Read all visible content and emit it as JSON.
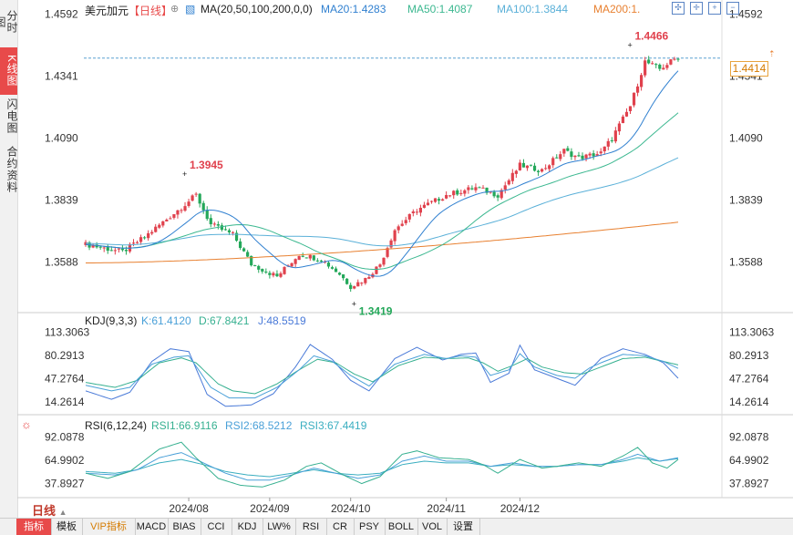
{
  "sidebar": {
    "items": [
      {
        "label": "分时图",
        "active": false
      },
      {
        "label": "K线图",
        "active": true
      },
      {
        "label": "闪电图",
        "active": false
      },
      {
        "label": "合约资料",
        "active": false
      }
    ]
  },
  "header": {
    "symbol": "美元加元",
    "period_tag": "【日线】",
    "ma_label": "MA(20,50,100,200,0,0)",
    "ma20": "MA20:1.4283",
    "ma50": "MA50:1.4087",
    "ma100": "MA100:1.3844",
    "ma200": "MA200:1."
  },
  "kdj_header": {
    "label": "KDJ(9,3,3)",
    "k": "K:61.4120",
    "d": "D:67.8421",
    "j": "J:48.5519"
  },
  "rsi_header": {
    "label": "RSI(6,12,24)",
    "rsi1": "RSI1:66.9116",
    "rsi2": "RSI2:68.5212",
    "rsi3": "RSI3:67.4419"
  },
  "current_price": "1.4414",
  "period_button": "日线",
  "bottom_tabs": [
    "指标",
    "模板",
    "VIP指标",
    "MACD",
    "BIAS",
    "CCI",
    "KDJ",
    "LW%",
    "RSI",
    "CR",
    "PSY",
    "BOLL",
    "VOL",
    "设置"
  ],
  "colors": {
    "up": "#e0414d",
    "down": "#24a85a",
    "ma20": "#3080d0",
    "ma50": "#3cb890",
    "ma100": "#5ab0d8",
    "ma200": "#e88030",
    "k": "#4aa0d8",
    "d": "#36b090",
    "j": "#4a7ad8",
    "rsi1": "#36b090",
    "rsi2": "#4aa0d8",
    "rsi3": "#3aaec0"
  },
  "chart_data": {
    "type": "candlestick",
    "main": {
      "y_ticks": [
        "1.4592",
        "1.4341",
        "1.4090",
        "1.3839",
        "1.3588"
      ],
      "ylim": [
        1.3395,
        1.4605
      ],
      "annotations": [
        {
          "label": "1.3945",
          "value": 1.3945
        },
        {
          "label": "1.3419",
          "value": 1.3419
        },
        {
          "label": "1.4466",
          "value": 1.4466
        }
      ],
      "dashed_level": 1.4414,
      "anchors": [
        [
          0,
          1.366
        ],
        [
          10,
          1.363
        ],
        [
          16,
          1.369
        ],
        [
          26,
          1.381
        ],
        [
          30,
          1.386
        ],
        [
          34,
          1.374
        ],
        [
          40,
          1.37
        ],
        [
          45,
          1.358
        ],
        [
          52,
          1.353
        ],
        [
          58,
          1.362
        ],
        [
          64,
          1.36
        ],
        [
          69,
          1.354
        ],
        [
          72,
          1.349
        ],
        [
          76,
          1.352
        ],
        [
          80,
          1.358
        ],
        [
          84,
          1.372
        ],
        [
          90,
          1.38
        ],
        [
          98,
          1.386
        ],
        [
          106,
          1.389
        ],
        [
          112,
          1.386
        ],
        [
          118,
          1.398
        ],
        [
          124,
          1.396
        ],
        [
          130,
          1.404
        ],
        [
          134,
          1.401
        ],
        [
          140,
          1.403
        ],
        [
          143,
          1.409
        ],
        [
          148,
          1.422
        ],
        [
          152,
          1.44
        ],
        [
          156,
          1.437
        ],
        [
          161,
          1.442
        ]
      ]
    },
    "kdj": {
      "y_ticks": [
        "113.3063",
        "80.2913",
        "47.2764",
        "14.2614"
      ],
      "ylim": [
        0,
        122
      ],
      "k": [
        [
          0,
          38
        ],
        [
          7,
          30
        ],
        [
          12,
          35
        ],
        [
          18,
          68
        ],
        [
          24,
          78
        ],
        [
          28,
          80
        ],
        [
          34,
          35
        ],
        [
          39,
          20
        ],
        [
          46,
          20
        ],
        [
          52,
          35
        ],
        [
          58,
          60
        ],
        [
          62,
          80
        ],
        [
          67,
          72
        ],
        [
          72,
          52
        ],
        [
          77,
          37
        ],
        [
          84,
          68
        ],
        [
          92,
          82
        ],
        [
          98,
          76
        ],
        [
          102,
          80
        ],
        [
          106,
          78
        ],
        [
          110,
          52
        ],
        [
          115,
          60
        ],
        [
          118,
          83
        ],
        [
          122,
          64
        ],
        [
          128,
          52
        ],
        [
          133,
          48
        ],
        [
          137,
          63
        ],
        [
          140,
          70
        ],
        [
          146,
          82
        ],
        [
          152,
          80
        ],
        [
          157,
          72
        ],
        [
          161,
          62
        ]
      ],
      "d": [
        [
          0,
          42
        ],
        [
          8,
          35
        ],
        [
          14,
          45
        ],
        [
          20,
          70
        ],
        [
          26,
          77
        ],
        [
          30,
          70
        ],
        [
          36,
          40
        ],
        [
          40,
          30
        ],
        [
          46,
          26
        ],
        [
          52,
          40
        ],
        [
          58,
          60
        ],
        [
          63,
          75
        ],
        [
          68,
          70
        ],
        [
          73,
          54
        ],
        [
          78,
          43
        ],
        [
          85,
          66
        ],
        [
          92,
          78
        ],
        [
          98,
          76
        ],
        [
          104,
          77
        ],
        [
          108,
          70
        ],
        [
          112,
          58
        ],
        [
          116,
          66
        ],
        [
          120,
          76
        ],
        [
          124,
          64
        ],
        [
          130,
          56
        ],
        [
          135,
          54
        ],
        [
          140,
          64
        ],
        [
          146,
          76
        ],
        [
          152,
          78
        ],
        [
          157,
          72
        ],
        [
          161,
          67
        ]
      ],
      "j": [
        [
          0,
          30
        ],
        [
          7,
          18
        ],
        [
          12,
          28
        ],
        [
          18,
          72
        ],
        [
          23,
          90
        ],
        [
          28,
          86
        ],
        [
          33,
          25
        ],
        [
          38,
          8
        ],
        [
          45,
          10
        ],
        [
          51,
          26
        ],
        [
          57,
          64
        ],
        [
          61,
          96
        ],
        [
          67,
          75
        ],
        [
          72,
          45
        ],
        [
          77,
          30
        ],
        [
          84,
          76
        ],
        [
          90,
          92
        ],
        [
          97,
          74
        ],
        [
          102,
          82
        ],
        [
          106,
          84
        ],
        [
          110,
          42
        ],
        [
          115,
          55
        ],
        [
          118,
          95
        ],
        [
          122,
          60
        ],
        [
          128,
          48
        ],
        [
          133,
          38
        ],
        [
          137,
          60
        ],
        [
          140,
          76
        ],
        [
          146,
          90
        ],
        [
          152,
          82
        ],
        [
          157,
          70
        ],
        [
          161,
          48
        ]
      ]
    },
    "rsi": {
      "y_ticks": [
        "92.0878",
        "64.9902",
        "37.8927"
      ],
      "ylim": [
        28,
        100
      ],
      "rsi1": [
        [
          0,
          50
        ],
        [
          6,
          44
        ],
        [
          12,
          52
        ],
        [
          20,
          78
        ],
        [
          26,
          86
        ],
        [
          30,
          68
        ],
        [
          36,
          44
        ],
        [
          42,
          36
        ],
        [
          48,
          34
        ],
        [
          54,
          42
        ],
        [
          60,
          58
        ],
        [
          64,
          62
        ],
        [
          70,
          48
        ],
        [
          75,
          38
        ],
        [
          80,
          46
        ],
        [
          86,
          72
        ],
        [
          90,
          76
        ],
        [
          96,
          68
        ],
        [
          104,
          66
        ],
        [
          108,
          60
        ],
        [
          112,
          50
        ],
        [
          118,
          66
        ],
        [
          124,
          56
        ],
        [
          128,
          58
        ],
        [
          134,
          62
        ],
        [
          140,
          58
        ],
        [
          146,
          70
        ],
        [
          150,
          80
        ],
        [
          154,
          62
        ],
        [
          158,
          56
        ],
        [
          161,
          66
        ]
      ],
      "rsi2": [
        [
          0,
          50
        ],
        [
          8,
          48
        ],
        [
          14,
          54
        ],
        [
          20,
          68
        ],
        [
          26,
          74
        ],
        [
          32,
          62
        ],
        [
          38,
          50
        ],
        [
          44,
          42
        ],
        [
          50,
          42
        ],
        [
          56,
          48
        ],
        [
          62,
          56
        ],
        [
          68,
          50
        ],
        [
          74,
          44
        ],
        [
          80,
          48
        ],
        [
          86,
          64
        ],
        [
          92,
          70
        ],
        [
          98,
          64
        ],
        [
          104,
          64
        ],
        [
          110,
          58
        ],
        [
          116,
          62
        ],
        [
          122,
          58
        ],
        [
          128,
          58
        ],
        [
          134,
          60
        ],
        [
          140,
          60
        ],
        [
          146,
          66
        ],
        [
          150,
          72
        ],
        [
          156,
          64
        ],
        [
          161,
          68
        ]
      ],
      "rsi3": [
        [
          0,
          52
        ],
        [
          8,
          50
        ],
        [
          14,
          54
        ],
        [
          20,
          62
        ],
        [
          26,
          66
        ],
        [
          32,
          60
        ],
        [
          38,
          52
        ],
        [
          44,
          48
        ],
        [
          50,
          46
        ],
        [
          56,
          50
        ],
        [
          62,
          54
        ],
        [
          68,
          50
        ],
        [
          74,
          48
        ],
        [
          80,
          50
        ],
        [
          86,
          60
        ],
        [
          92,
          64
        ],
        [
          98,
          62
        ],
        [
          104,
          62
        ],
        [
          110,
          58
        ],
        [
          116,
          60
        ],
        [
          122,
          58
        ],
        [
          128,
          58
        ],
        [
          134,
          60
        ],
        [
          140,
          60
        ],
        [
          146,
          64
        ],
        [
          150,
          68
        ],
        [
          156,
          64
        ],
        [
          161,
          67
        ]
      ]
    },
    "x_labels": [
      "2024/08",
      "2024/09",
      "2024/10",
      "2024/11",
      "2024/12"
    ]
  }
}
